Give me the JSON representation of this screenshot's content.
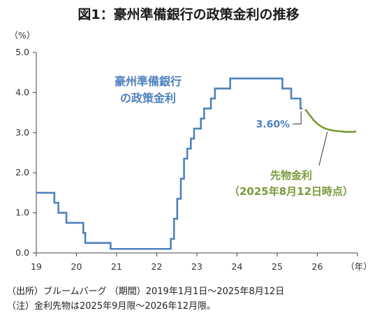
{
  "title": "図1：豪州準備銀行の政策金利の推移",
  "notes": {
    "source": "（出所）ブルームバーグ （期間）2019年1月1日～2025年8月12日",
    "remark": "（注）金利先物は2025年9月限～2026年12月限。"
  },
  "colors": {
    "policy_rate": "#4f81bd",
    "futures": "#7a9a3a",
    "axis": "#444444"
  },
  "chart_data": {
    "type": "line",
    "title": "図1：豪州準備銀行の政策金利の推移",
    "xlabel": "（年）",
    "ylabel": "（%）",
    "xlim": [
      19,
      27
    ],
    "ylim": [
      0.0,
      5.0
    ],
    "x_ticks": [
      "19",
      "20",
      "21",
      "22",
      "23",
      "24",
      "25",
      "26"
    ],
    "y_ticks": [
      "0.0",
      "1.0",
      "2.0",
      "3.0",
      "4.0",
      "5.0"
    ],
    "grid": false,
    "series": [
      {
        "name": "豪州準備銀行の政策金利",
        "label_lines": [
          "豪州準備銀行",
          "の政策金利"
        ],
        "style": "step",
        "x": [
          19.0,
          19.45,
          19.55,
          19.75,
          20.17,
          20.22,
          20.85,
          22.35,
          22.43,
          22.51,
          22.6,
          22.68,
          22.76,
          22.85,
          22.93,
          23.1,
          23.18,
          23.35,
          23.45,
          23.83,
          24.83,
          24.9,
          25.13,
          25.35,
          25.58,
          25.63
        ],
        "y": [
          1.5,
          1.25,
          1.0,
          0.75,
          0.5,
          0.25,
          0.1,
          0.35,
          0.85,
          1.35,
          1.85,
          2.35,
          2.6,
          2.85,
          3.1,
          3.35,
          3.6,
          3.85,
          4.1,
          4.35,
          4.35,
          4.35,
          4.1,
          3.85,
          3.6,
          3.6
        ]
      },
      {
        "name": "先物金利",
        "label_lines": [
          "先物金利",
          "（2025年8月12日時点）"
        ],
        "style": "line",
        "x": [
          25.7,
          25.8,
          25.9,
          26.0,
          26.1,
          26.2,
          26.3,
          26.4,
          26.5,
          26.6,
          26.7,
          26.8,
          26.9,
          26.97
        ],
        "y": [
          3.58,
          3.45,
          3.32,
          3.22,
          3.15,
          3.1,
          3.07,
          3.05,
          3.04,
          3.03,
          3.02,
          3.02,
          3.02,
          3.03
        ]
      }
    ],
    "annotations": [
      {
        "text": "3.60%",
        "x": 25.63,
        "y": 3.6
      }
    ]
  }
}
